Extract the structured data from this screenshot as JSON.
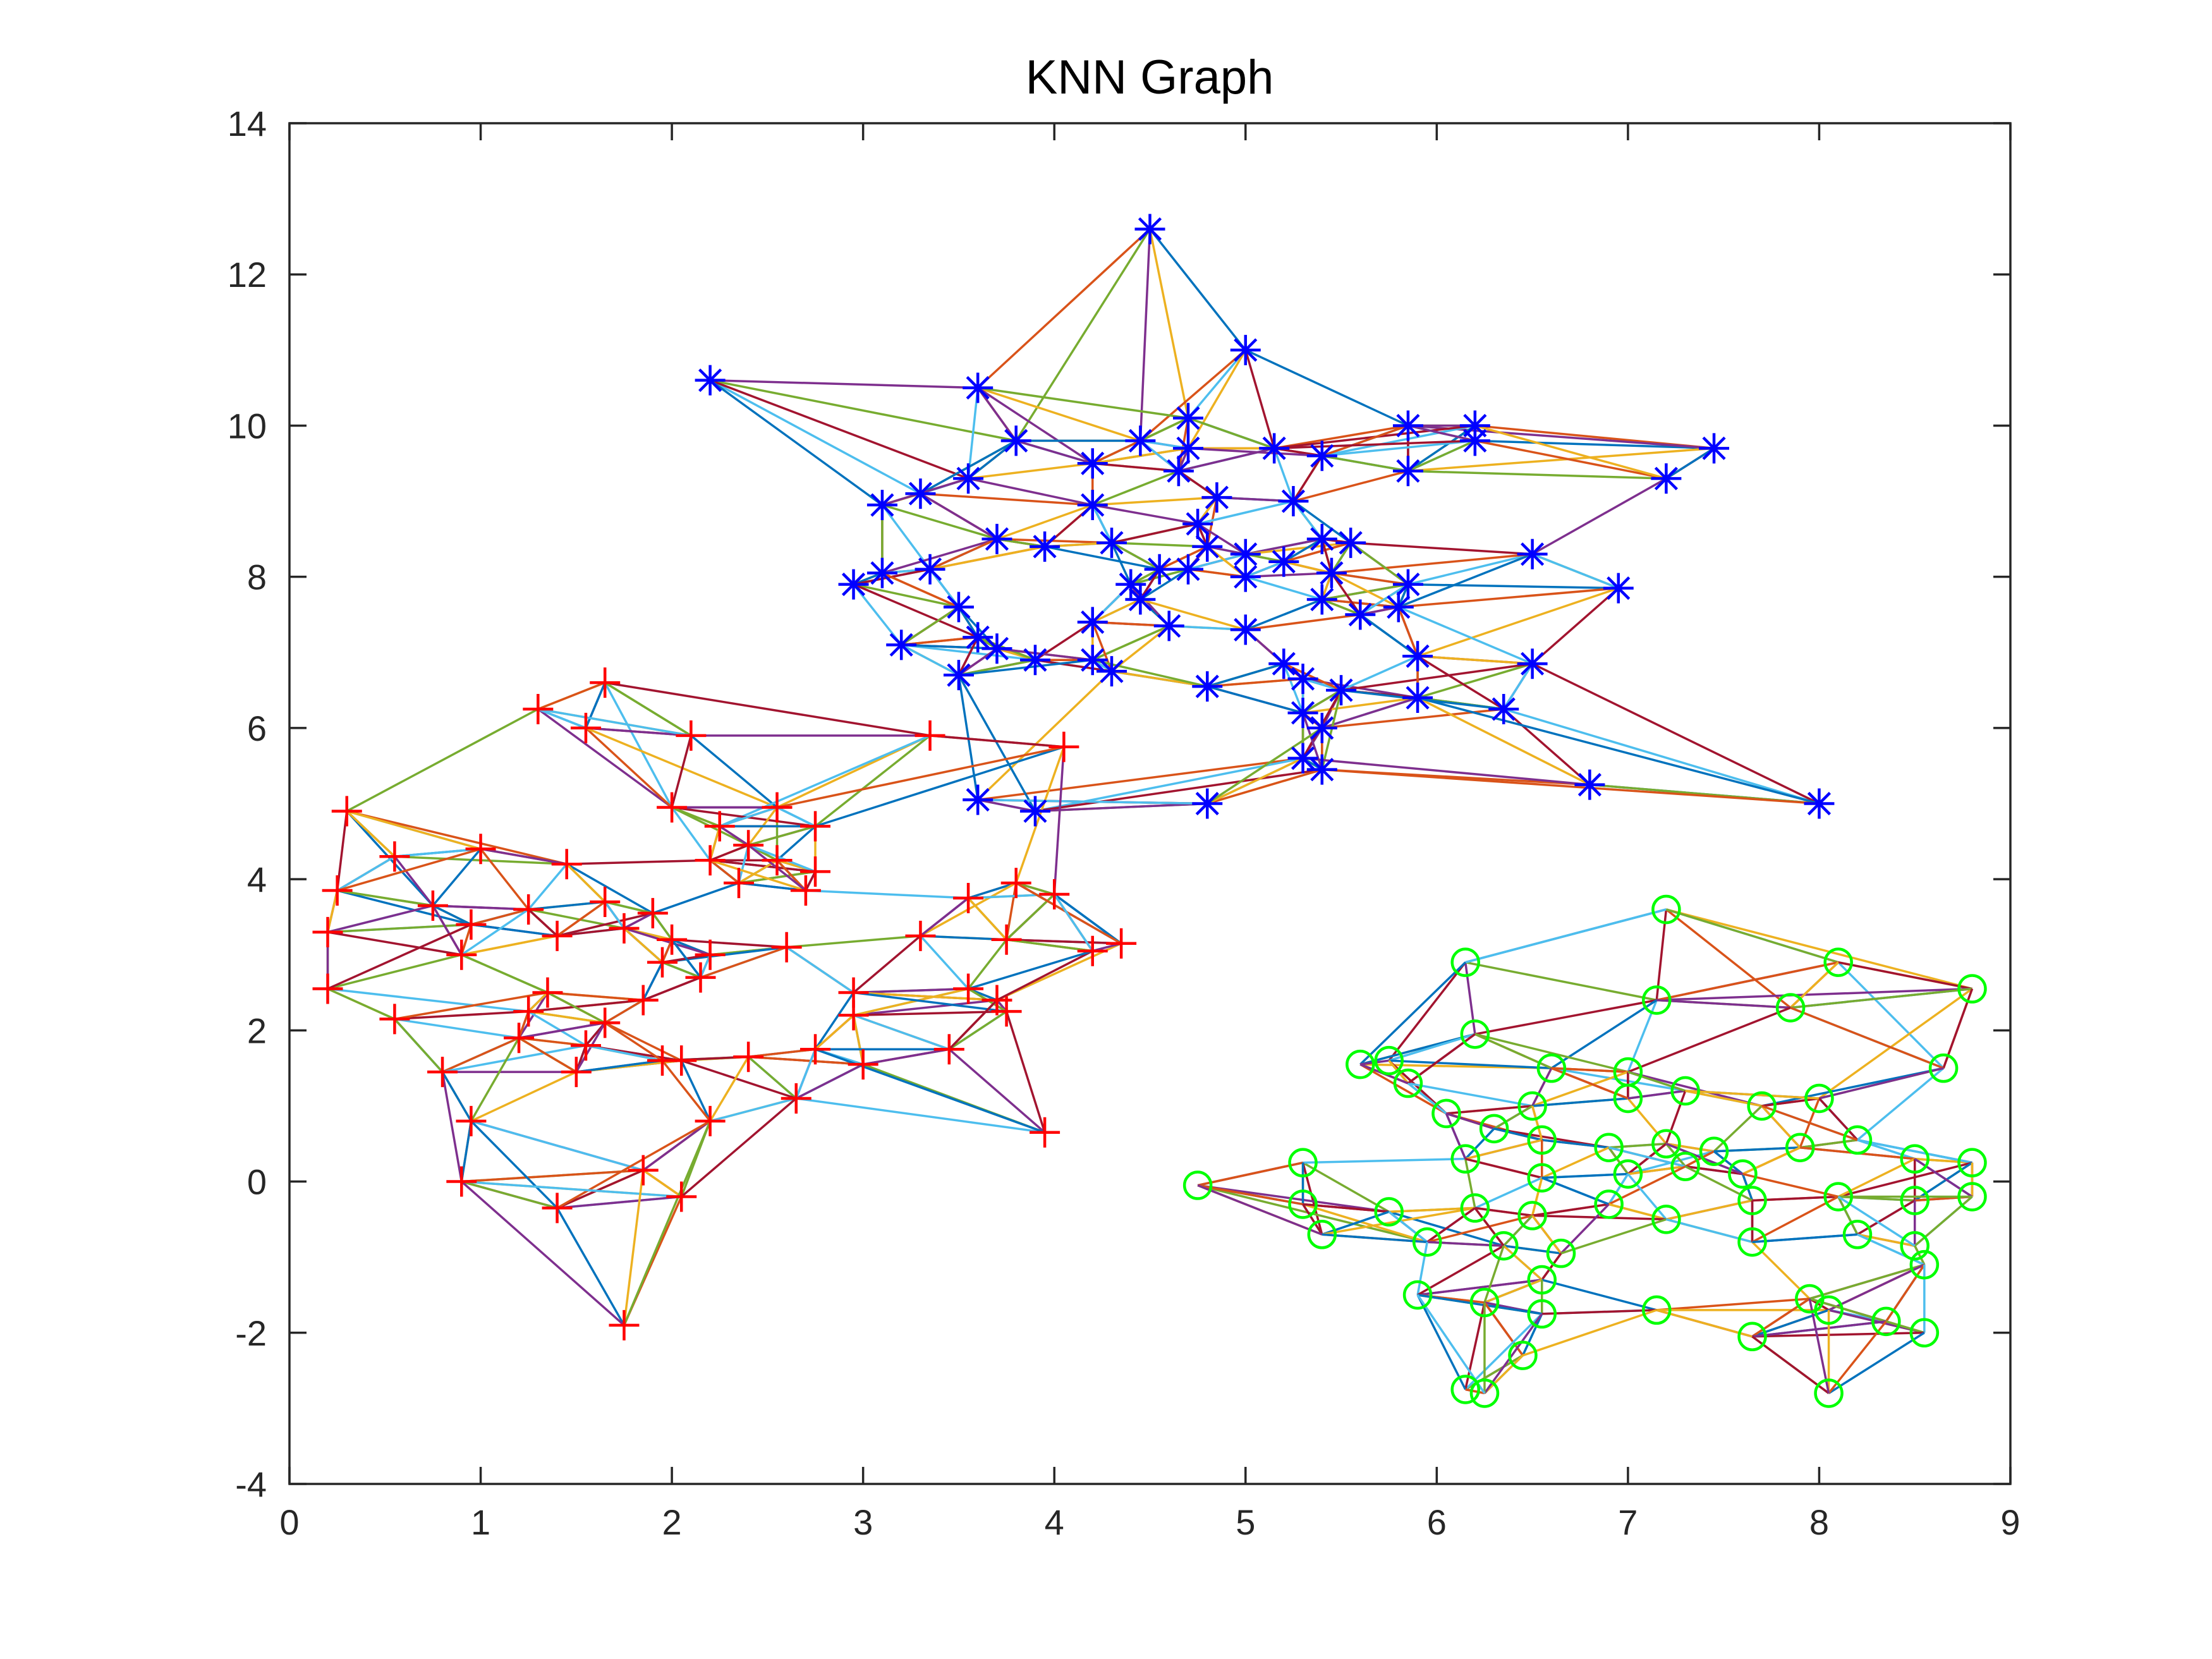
{
  "chart_data": {
    "type": "scatter",
    "title": "KNN Graph",
    "xlabel": "",
    "ylabel": "",
    "xlim": [
      0,
      9
    ],
    "ylim": [
      -4,
      14
    ],
    "xticks": [
      0,
      1,
      2,
      3,
      4,
      5,
      6,
      7,
      8,
      9
    ],
    "yticks": [
      -4,
      -2,
      0,
      2,
      4,
      6,
      8,
      10,
      12,
      14
    ],
    "grid": false,
    "legend": "none",
    "edge_colors": [
      "#0072BD",
      "#D95319",
      "#EDB120",
      "#7E2F8E",
      "#77AC30",
      "#4DBEEE",
      "#A2142F"
    ],
    "series": [
      {
        "marker": "asterisk",
        "color": "#0000FF",
        "points": [
          [
            4.5,
            12.6
          ],
          [
            5.0,
            11.0
          ],
          [
            2.2,
            10.6
          ],
          [
            3.6,
            10.5
          ],
          [
            7.45,
            9.7
          ],
          [
            5.85,
            10.0
          ],
          [
            6.2,
            10.0
          ],
          [
            3.8,
            9.8
          ],
          [
            4.7,
            10.1
          ],
          [
            4.45,
            9.8
          ],
          [
            4.2,
            9.5
          ],
          [
            3.55,
            9.3
          ],
          [
            3.3,
            9.1
          ],
          [
            3.1,
            8.95
          ],
          [
            4.2,
            8.95
          ],
          [
            4.7,
            9.7
          ],
          [
            4.65,
            9.4
          ],
          [
            5.15,
            9.7
          ],
          [
            5.4,
            9.6
          ],
          [
            5.85,
            9.4
          ],
          [
            6.2,
            9.8
          ],
          [
            7.2,
            9.3
          ],
          [
            4.85,
            9.05
          ],
          [
            5.25,
            9.0
          ],
          [
            4.75,
            8.7
          ],
          [
            3.7,
            8.5
          ],
          [
            3.95,
            8.4
          ],
          [
            4.3,
            8.45
          ],
          [
            4.55,
            8.1
          ],
          [
            4.8,
            8.4
          ],
          [
            5.0,
            8.3
          ],
          [
            5.4,
            8.5
          ],
          [
            5.55,
            8.45
          ],
          [
            6.5,
            8.3
          ],
          [
            2.95,
            7.9
          ],
          [
            3.1,
            8.05
          ],
          [
            3.35,
            8.1
          ],
          [
            4.4,
            7.9
          ],
          [
            4.7,
            8.1
          ],
          [
            5.0,
            8.0
          ],
          [
            5.2,
            8.2
          ],
          [
            5.45,
            8.05
          ],
          [
            5.85,
            7.9
          ],
          [
            6.95,
            7.85
          ],
          [
            4.45,
            7.7
          ],
          [
            5.4,
            7.7
          ],
          [
            5.8,
            7.6
          ],
          [
            3.5,
            7.6
          ],
          [
            4.2,
            7.4
          ],
          [
            4.6,
            7.35
          ],
          [
            5.0,
            7.3
          ],
          [
            5.6,
            7.5
          ],
          [
            3.2,
            7.1
          ],
          [
            3.6,
            7.2
          ],
          [
            3.7,
            7.05
          ],
          [
            3.9,
            6.9
          ],
          [
            4.2,
            6.9
          ],
          [
            4.3,
            6.75
          ],
          [
            3.5,
            6.7
          ],
          [
            5.2,
            6.85
          ],
          [
            5.3,
            6.65
          ],
          [
            5.9,
            6.95
          ],
          [
            6.5,
            6.85
          ],
          [
            4.8,
            6.55
          ],
          [
            5.5,
            6.5
          ],
          [
            5.3,
            6.2
          ],
          [
            5.4,
            6.0
          ],
          [
            5.9,
            6.4
          ],
          [
            6.35,
            6.25
          ],
          [
            5.3,
            5.6
          ],
          [
            5.4,
            5.45
          ],
          [
            3.6,
            5.05
          ],
          [
            3.9,
            4.9
          ],
          [
            4.8,
            5.0
          ],
          [
            6.8,
            5.25
          ],
          [
            8.0,
            5.0
          ]
        ]
      },
      {
        "marker": "plus",
        "color": "#FF0000",
        "points": [
          [
            1.65,
            6.6
          ],
          [
            1.3,
            6.25
          ],
          [
            1.55,
            6.0
          ],
          [
            2.1,
            5.9
          ],
          [
            3.35,
            5.9
          ],
          [
            4.05,
            5.75
          ],
          [
            0.3,
            4.9
          ],
          [
            2.0,
            4.95
          ],
          [
            2.55,
            4.95
          ],
          [
            2.75,
            4.7
          ],
          [
            2.25,
            4.7
          ],
          [
            2.4,
            4.45
          ],
          [
            2.2,
            4.25
          ],
          [
            2.55,
            4.25
          ],
          [
            2.75,
            4.1
          ],
          [
            0.55,
            4.3
          ],
          [
            1.0,
            4.4
          ],
          [
            1.45,
            4.2
          ],
          [
            2.35,
            3.95
          ],
          [
            2.7,
            3.85
          ],
          [
            0.25,
            3.85
          ],
          [
            0.75,
            3.65
          ],
          [
            1.25,
            3.6
          ],
          [
            1.65,
            3.7
          ],
          [
            1.9,
            3.55
          ],
          [
            3.55,
            3.75
          ],
          [
            3.8,
            3.95
          ],
          [
            4.0,
            3.8
          ],
          [
            0.2,
            3.3
          ],
          [
            0.95,
            3.4
          ],
          [
            1.4,
            3.25
          ],
          [
            1.75,
            3.35
          ],
          [
            2.0,
            3.2
          ],
          [
            2.2,
            3.0
          ],
          [
            2.6,
            3.1
          ],
          [
            3.3,
            3.25
          ],
          [
            3.75,
            3.2
          ],
          [
            4.35,
            3.15
          ],
          [
            4.2,
            3.05
          ],
          [
            0.9,
            3.0
          ],
          [
            1.95,
            2.9
          ],
          [
            2.15,
            2.7
          ],
          [
            0.2,
            2.55
          ],
          [
            1.35,
            2.5
          ],
          [
            1.85,
            2.4
          ],
          [
            2.95,
            2.5
          ],
          [
            3.55,
            2.55
          ],
          [
            3.7,
            2.4
          ],
          [
            0.55,
            2.15
          ],
          [
            1.25,
            2.25
          ],
          [
            1.65,
            2.1
          ],
          [
            2.95,
            2.2
          ],
          [
            3.75,
            2.25
          ],
          [
            1.2,
            1.9
          ],
          [
            1.55,
            1.8
          ],
          [
            2.05,
            1.6
          ],
          [
            2.4,
            1.65
          ],
          [
            2.75,
            1.75
          ],
          [
            3.0,
            1.55
          ],
          [
            3.45,
            1.75
          ],
          [
            0.8,
            1.45
          ],
          [
            1.5,
            1.45
          ],
          [
            1.95,
            1.6
          ],
          [
            2.65,
            1.1
          ],
          [
            0.95,
            0.8
          ],
          [
            2.2,
            0.8
          ],
          [
            3.95,
            0.65
          ],
          [
            1.85,
            0.15
          ],
          [
            0.9,
            0.0
          ],
          [
            1.4,
            -0.35
          ],
          [
            2.05,
            -0.2
          ],
          [
            1.75,
            -1.9
          ]
        ]
      },
      {
        "marker": "circle",
        "color": "#00FF00",
        "points": [
          [
            7.2,
            3.6
          ],
          [
            6.15,
            2.9
          ],
          [
            8.1,
            2.9
          ],
          [
            8.8,
            2.55
          ],
          [
            7.15,
            2.4
          ],
          [
            7.85,
            2.3
          ],
          [
            6.2,
            1.95
          ],
          [
            5.6,
            1.55
          ],
          [
            5.75,
            1.6
          ],
          [
            6.6,
            1.5
          ],
          [
            7.0,
            1.45
          ],
          [
            8.65,
            1.5
          ],
          [
            5.85,
            1.3
          ],
          [
            6.5,
            1.0
          ],
          [
            7.0,
            1.1
          ],
          [
            7.3,
            1.2
          ],
          [
            7.7,
            1.0
          ],
          [
            8.0,
            1.1
          ],
          [
            6.05,
            0.9
          ],
          [
            6.3,
            0.7
          ],
          [
            6.55,
            0.55
          ],
          [
            6.9,
            0.45
          ],
          [
            7.2,
            0.5
          ],
          [
            7.45,
            0.4
          ],
          [
            7.9,
            0.45
          ],
          [
            8.2,
            0.55
          ],
          [
            5.3,
            0.25
          ],
          [
            6.15,
            0.3
          ],
          [
            6.55,
            0.05
          ],
          [
            7.0,
            0.1
          ],
          [
            7.3,
            0.2
          ],
          [
            7.6,
            0.1
          ],
          [
            8.5,
            0.3
          ],
          [
            8.8,
            0.25
          ],
          [
            4.75,
            -0.05
          ],
          [
            5.3,
            -0.3
          ],
          [
            5.75,
            -0.4
          ],
          [
            6.2,
            -0.35
          ],
          [
            6.5,
            -0.45
          ],
          [
            6.9,
            -0.3
          ],
          [
            7.2,
            -0.5
          ],
          [
            7.65,
            -0.25
          ],
          [
            8.1,
            -0.2
          ],
          [
            8.5,
            -0.25
          ],
          [
            8.8,
            -0.2
          ],
          [
            5.4,
            -0.7
          ],
          [
            5.95,
            -0.8
          ],
          [
            6.35,
            -0.85
          ],
          [
            6.65,
            -0.95
          ],
          [
            7.65,
            -0.8
          ],
          [
            8.2,
            -0.7
          ],
          [
            8.5,
            -0.85
          ],
          [
            6.55,
            -1.3
          ],
          [
            8.55,
            -1.1
          ],
          [
            5.9,
            -1.5
          ],
          [
            6.25,
            -1.6
          ],
          [
            7.15,
            -1.7
          ],
          [
            6.55,
            -1.75
          ],
          [
            7.95,
            -1.55
          ],
          [
            8.05,
            -1.7
          ],
          [
            8.35,
            -1.85
          ],
          [
            8.55,
            -2.0
          ],
          [
            7.65,
            -2.05
          ],
          [
            6.45,
            -2.3
          ],
          [
            6.15,
            -2.75
          ],
          [
            6.25,
            -2.8
          ],
          [
            8.05,
            -2.8
          ]
        ]
      }
    ]
  }
}
